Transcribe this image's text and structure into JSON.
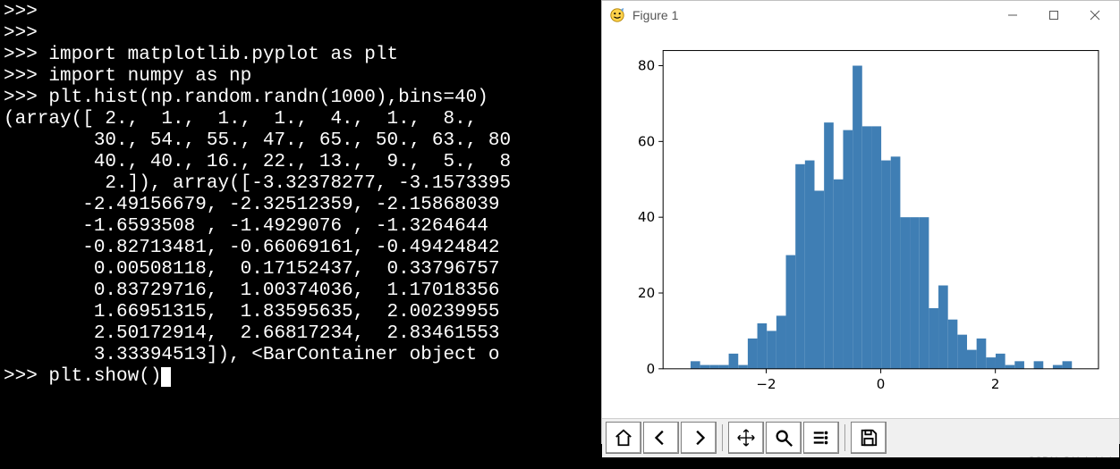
{
  "terminal": {
    "lines": [
      ">>>",
      ">>>",
      ">>> import matplotlib.pyplot as plt",
      ">>> import numpy as np",
      ">>> plt.hist(np.random.randn(1000),bins=40)",
      "(array([ 2.,  1.,  1.,  1.,  4.,  1.,  8.,",
      "        30., 54., 55., 47., 65., 50., 63., 80",
      "        40., 40., 16., 22., 13.,  9.,  5.,  8",
      "         2.]), array([-3.32378277, -3.1573395",
      "       -2.49156679, -2.32512359, -2.15868039",
      "       -1.6593508 , -1.4929076 , -1.3264644 ",
      "       -0.82713481, -0.66069161, -0.49424842",
      "        0.00508118,  0.17152437,  0.33796757",
      "        0.83729716,  1.00374036,  1.17018356",
      "        1.66951315,  1.83595635,  2.00239955",
      "        2.50172914,  2.66817234,  2.83461553",
      "        3.33394513]), <BarContainer object o",
      ">>> plt.show()"
    ]
  },
  "figure": {
    "window_title": "Figure 1",
    "toolbar_icons": [
      "home",
      "back",
      "forward",
      "|",
      "pan",
      "zoom",
      "subplots",
      "|",
      "save"
    ],
    "chart": {
      "type": "histogram",
      "bar_color": "#3f7eb4",
      "bar_edge_color": "#3f7eb4",
      "background_color": "#ffffff",
      "spine_color": "#000000",
      "grid": false,
      "xlim": [
        -3.8,
        3.8
      ],
      "ylim": [
        0,
        84
      ],
      "xticks": [
        -2,
        0,
        2
      ],
      "yticks": [
        0,
        20,
        40,
        60,
        80
      ],
      "xtick_labels": [
        "−2",
        "0",
        "2"
      ],
      "ytick_labels": [
        "0",
        "20",
        "40",
        "60",
        "80"
      ],
      "tick_fontsize": 15,
      "tick_color": "#000000",
      "bin_left_edge": -3.32,
      "bin_width": 0.1664,
      "counts": [
        2,
        1,
        1,
        1,
        4,
        1,
        8,
        12,
        10,
        14,
        30,
        54,
        55,
        47,
        65,
        50,
        63,
        80,
        64,
        64,
        55,
        56,
        40,
        40,
        40,
        16,
        22,
        13,
        9,
        5,
        8,
        3,
        4,
        1,
        2,
        0,
        2,
        0,
        1,
        2
      ]
    }
  },
  "watermark": "CSDN @Hub-Link"
}
